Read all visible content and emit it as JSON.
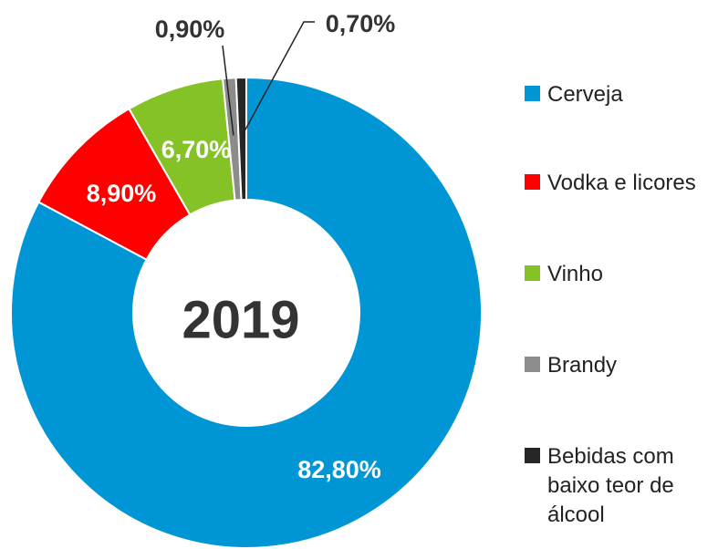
{
  "chart_data": {
    "type": "donut",
    "center_text": "2019",
    "categories": [
      "Cerveja",
      "Vodka e licores",
      "Vinho",
      "Brandy",
      "Bebidas com baixo teor de álcool"
    ],
    "values": [
      82.8,
      8.9,
      6.7,
      0.9,
      0.7
    ],
    "value_labels": [
      "82,80%",
      "8,90%",
      "6,70%",
      "0,90%",
      "0,70%"
    ],
    "colors": [
      "#0096d6",
      "#ff0000",
      "#84c225",
      "#8c8c8c",
      "#262626"
    ],
    "legend": "right"
  }
}
